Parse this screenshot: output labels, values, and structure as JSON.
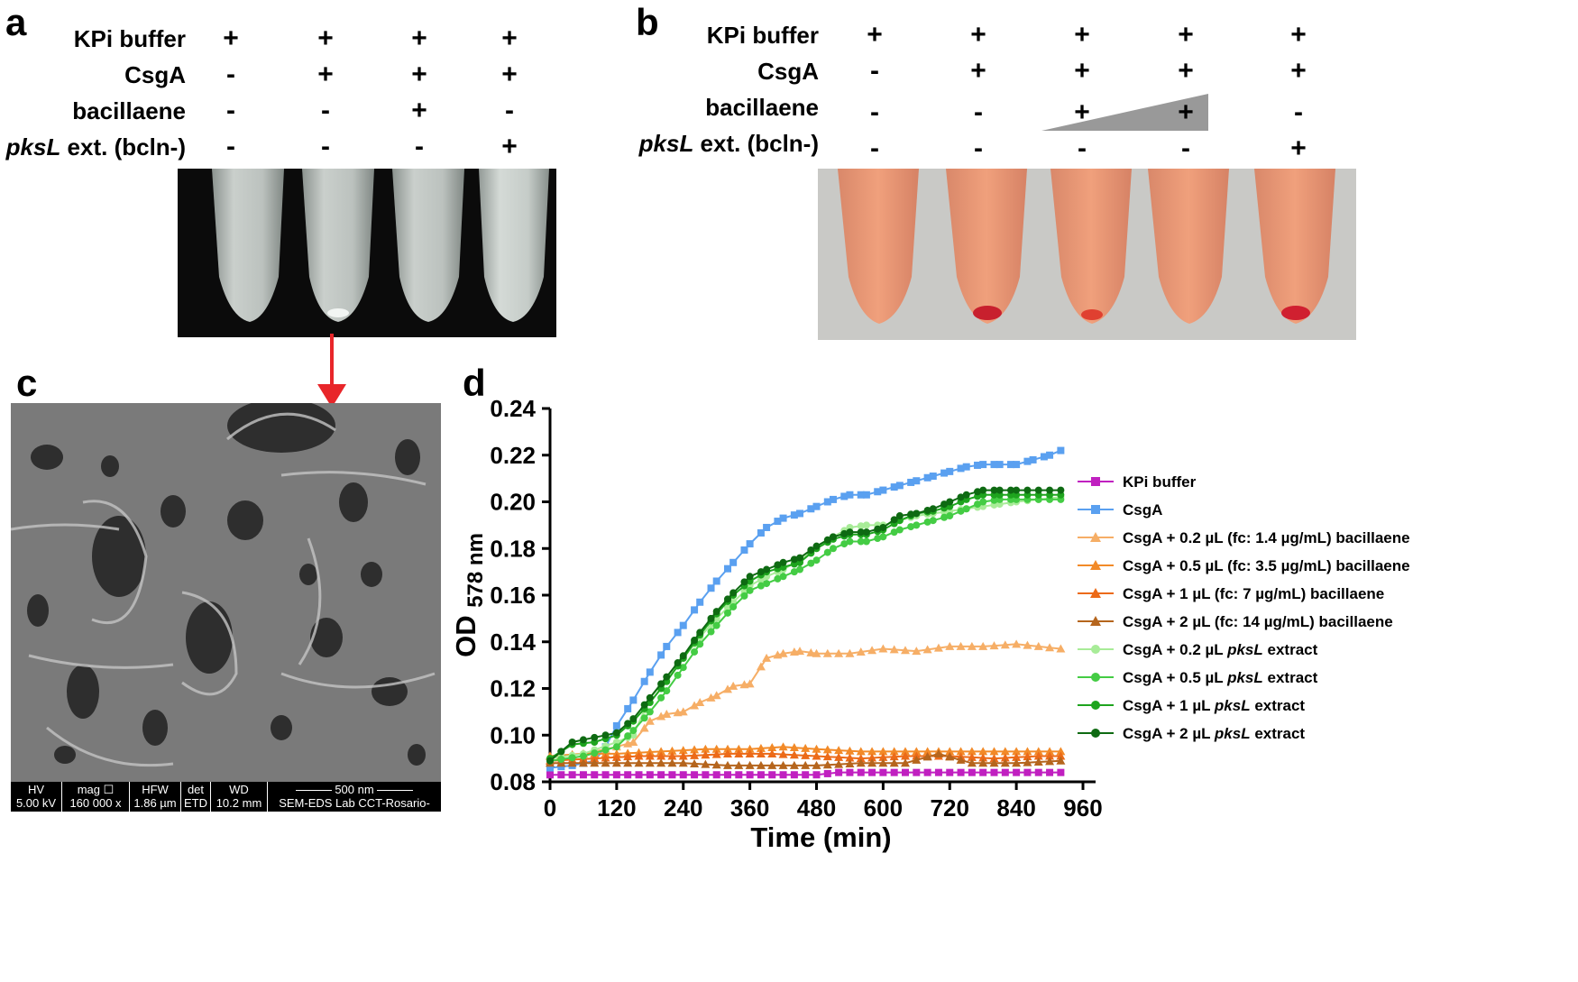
{
  "panel_a": {
    "letter": "a",
    "rows": [
      {
        "label": "KPi buffer",
        "values": [
          "+",
          "+",
          "+",
          "+"
        ]
      },
      {
        "label": "CsgA",
        "values": [
          "-",
          "+",
          "+",
          "+"
        ]
      },
      {
        "label": "bacillaene",
        "values": [
          "-",
          "-",
          "+",
          "-"
        ]
      },
      {
        "label_italic": "pksL",
        "label_rest": " ext. (bcln-)",
        "values": [
          "-",
          "-",
          "-",
          "+"
        ]
      }
    ]
  },
  "panel_b": {
    "letter": "b",
    "rows": [
      {
        "label": "KPi buffer",
        "values": [
          "+",
          "+",
          "+",
          "+",
          "+"
        ]
      },
      {
        "label": "CsgA",
        "values": [
          "-",
          "+",
          "+",
          "+",
          "+"
        ]
      },
      {
        "label": "bacillaene",
        "values": [
          "-",
          "-",
          "+",
          "+",
          "-"
        ]
      },
      {
        "label_italic": "pksL",
        "label_rest": " ext. (bcln-)",
        "values": [
          "-",
          "-",
          "-",
          "-",
          "+"
        ]
      }
    ]
  },
  "panel_c": {
    "letter": "c",
    "sem_bar": {
      "headers": [
        "HV",
        "mag ☐",
        "HFW",
        "det",
        "WD",
        "500 nm"
      ],
      "values": [
        "5.00 kV",
        "160 000 x",
        "1.86 µm",
        "ETD",
        "10.2 mm",
        "SEM-EDS Lab CCT-Rosario-"
      ]
    }
  },
  "panel_d": {
    "letter": "d"
  },
  "colors": {
    "arrow": "#e8262a",
    "kpi": "#c020c0",
    "csga": "#5aa0f0"
  },
  "chart_data": {
    "type": "line",
    "xlabel": "Time (min)",
    "ylabel": "OD",
    "ylabel_sub": "578 nm",
    "xlim": [
      0,
      960
    ],
    "ylim": [
      0.08,
      0.24
    ],
    "xticks": [
      0,
      120,
      240,
      360,
      480,
      600,
      720,
      840,
      960
    ],
    "yticks": [
      0.08,
      0.1,
      0.12,
      0.14,
      0.16,
      0.18,
      0.2,
      0.22,
      0.24
    ],
    "series": [
      {
        "name": "KPi buffer",
        "color": "#c020c0",
        "marker": "square",
        "points": [
          [
            0,
            0.083
          ],
          [
            120,
            0.083
          ],
          [
            240,
            0.083
          ],
          [
            360,
            0.083
          ],
          [
            480,
            0.083
          ],
          [
            520,
            0.084
          ],
          [
            600,
            0.084
          ],
          [
            720,
            0.084
          ],
          [
            840,
            0.084
          ],
          [
            920,
            0.084
          ]
        ]
      },
      {
        "name": "CsgA",
        "color": "#5aa0f0",
        "marker": "square",
        "points": [
          [
            0,
            0.086
          ],
          [
            40,
            0.087
          ],
          [
            80,
            0.089
          ],
          [
            100,
            0.095
          ],
          [
            120,
            0.104
          ],
          [
            150,
            0.115
          ],
          [
            180,
            0.127
          ],
          [
            210,
            0.138
          ],
          [
            240,
            0.147
          ],
          [
            270,
            0.157
          ],
          [
            300,
            0.166
          ],
          [
            330,
            0.174
          ],
          [
            360,
            0.182
          ],
          [
            390,
            0.189
          ],
          [
            420,
            0.193
          ],
          [
            450,
            0.195
          ],
          [
            480,
            0.198
          ],
          [
            510,
            0.201
          ],
          [
            540,
            0.203
          ],
          [
            570,
            0.203
          ],
          [
            600,
            0.205
          ],
          [
            630,
            0.207
          ],
          [
            660,
            0.209
          ],
          [
            690,
            0.211
          ],
          [
            720,
            0.213
          ],
          [
            750,
            0.215
          ],
          [
            780,
            0.216
          ],
          [
            810,
            0.216
          ],
          [
            840,
            0.216
          ],
          [
            870,
            0.218
          ],
          [
            900,
            0.22
          ],
          [
            920,
            0.222
          ]
        ]
      },
      {
        "name_pre": "CsgA + 0.2 µL (fc: 1.4 µg/mL) bacillaene",
        "name": "CsgA + 0.2 µL (fc: 1.4 µg/mL) bacillaene",
        "color": "#f6ae66",
        "marker": "triangle",
        "points": [
          [
            0,
            0.091
          ],
          [
            60,
            0.092
          ],
          [
            120,
            0.095
          ],
          [
            150,
            0.097
          ],
          [
            180,
            0.106
          ],
          [
            210,
            0.109
          ],
          [
            240,
            0.11
          ],
          [
            270,
            0.114
          ],
          [
            300,
            0.117
          ],
          [
            330,
            0.121
          ],
          [
            360,
            0.122
          ],
          [
            390,
            0.133
          ],
          [
            420,
            0.135
          ],
          [
            450,
            0.136
          ],
          [
            480,
            0.135
          ],
          [
            540,
            0.135
          ],
          [
            600,
            0.137
          ],
          [
            660,
            0.136
          ],
          [
            720,
            0.138
          ],
          [
            780,
            0.138
          ],
          [
            840,
            0.139
          ],
          [
            880,
            0.138
          ],
          [
            920,
            0.137
          ]
        ]
      },
      {
        "name": "CsgA + 0.5 µL (fc: 3.5 µg/mL) bacillaene",
        "color": "#f28a28",
        "marker": "triangle",
        "points": [
          [
            0,
            0.091
          ],
          [
            60,
            0.092
          ],
          [
            120,
            0.092
          ],
          [
            200,
            0.093
          ],
          [
            280,
            0.094
          ],
          [
            360,
            0.094
          ],
          [
            420,
            0.095
          ],
          [
            480,
            0.094
          ],
          [
            560,
            0.093
          ],
          [
            640,
            0.093
          ],
          [
            720,
            0.093
          ],
          [
            800,
            0.093
          ],
          [
            880,
            0.093
          ],
          [
            920,
            0.093
          ]
        ]
      },
      {
        "name": "CsgA + 1 µL  (fc: 7 µg/mL) bacillaene",
        "color": "#ec6a18",
        "marker": "triangle",
        "points": [
          [
            0,
            0.089
          ],
          [
            80,
            0.09
          ],
          [
            160,
            0.091
          ],
          [
            240,
            0.091
          ],
          [
            320,
            0.092
          ],
          [
            400,
            0.092
          ],
          [
            480,
            0.091
          ],
          [
            560,
            0.09
          ],
          [
            640,
            0.091
          ],
          [
            720,
            0.091
          ],
          [
            800,
            0.09
          ],
          [
            880,
            0.091
          ],
          [
            920,
            0.091
          ]
        ]
      },
      {
        "name": "CsgA + 2 µL (fc: 14 µg/mL) bacillaene",
        "color": "#b5651d",
        "marker": "triangle",
        "points": [
          [
            0,
            0.088
          ],
          [
            80,
            0.088
          ],
          [
            160,
            0.088
          ],
          [
            240,
            0.088
          ],
          [
            320,
            0.087
          ],
          [
            400,
            0.087
          ],
          [
            480,
            0.087
          ],
          [
            560,
            0.088
          ],
          [
            640,
            0.088
          ],
          [
            700,
            0.092
          ],
          [
            760,
            0.088
          ],
          [
            840,
            0.088
          ],
          [
            920,
            0.089
          ]
        ]
      },
      {
        "name_it": "pksL",
        "name_pre": "CsgA + 0.2 µL ",
        "name_post": " extract",
        "name": "CsgA + 0.2 µL pksL extract",
        "color": "#a8ec98",
        "marker": "circle",
        "points": [
          [
            0,
            0.09
          ],
          [
            60,
            0.092
          ],
          [
            120,
            0.097
          ],
          [
            150,
            0.1
          ],
          [
            180,
            0.116
          ],
          [
            210,
            0.124
          ],
          [
            240,
            0.133
          ],
          [
            270,
            0.142
          ],
          [
            300,
            0.15
          ],
          [
            330,
            0.157
          ],
          [
            360,
            0.164
          ],
          [
            390,
            0.168
          ],
          [
            420,
            0.171
          ],
          [
            450,
            0.175
          ],
          [
            480,
            0.18
          ],
          [
            510,
            0.185
          ],
          [
            540,
            0.189
          ],
          [
            570,
            0.19
          ],
          [
            600,
            0.19
          ],
          [
            630,
            0.192
          ],
          [
            660,
            0.194
          ],
          [
            690,
            0.195
          ],
          [
            720,
            0.196
          ],
          [
            750,
            0.197
          ],
          [
            780,
            0.198
          ],
          [
            810,
            0.199
          ],
          [
            840,
            0.2
          ],
          [
            880,
            0.201
          ],
          [
            920,
            0.202
          ]
        ]
      },
      {
        "name_it": "pksL",
        "name_pre": "CsgA + 0.5 µL ",
        "name_post": " extract",
        "name": "CsgA + 0.5 µL pksL extract",
        "color": "#44cc44",
        "marker": "circle",
        "points": [
          [
            0,
            0.089
          ],
          [
            60,
            0.091
          ],
          [
            120,
            0.095
          ],
          [
            150,
            0.102
          ],
          [
            180,
            0.11
          ],
          [
            210,
            0.119
          ],
          [
            240,
            0.129
          ],
          [
            270,
            0.139
          ],
          [
            300,
            0.147
          ],
          [
            330,
            0.155
          ],
          [
            360,
            0.162
          ],
          [
            390,
            0.165
          ],
          [
            420,
            0.168
          ],
          [
            450,
            0.171
          ],
          [
            480,
            0.175
          ],
          [
            510,
            0.18
          ],
          [
            540,
            0.183
          ],
          [
            570,
            0.183
          ],
          [
            600,
            0.185
          ],
          [
            630,
            0.188
          ],
          [
            660,
            0.19
          ],
          [
            690,
            0.192
          ],
          [
            720,
            0.194
          ],
          [
            750,
            0.197
          ],
          [
            780,
            0.2
          ],
          [
            810,
            0.201
          ],
          [
            840,
            0.201
          ],
          [
            880,
            0.201
          ],
          [
            920,
            0.201
          ]
        ]
      },
      {
        "name_it": "pksL",
        "name_pre": "CsgA + 1 µL ",
        "name_post": " extract",
        "name": "CsgA + 1 µL pksL extract",
        "color": "#1ea41e",
        "marker": "circle",
        "points": [
          [
            0,
            0.09
          ],
          [
            40,
            0.096
          ],
          [
            80,
            0.097
          ],
          [
            120,
            0.1
          ],
          [
            150,
            0.106
          ],
          [
            180,
            0.114
          ],
          [
            210,
            0.123
          ],
          [
            240,
            0.133
          ],
          [
            270,
            0.143
          ],
          [
            300,
            0.152
          ],
          [
            330,
            0.16
          ],
          [
            360,
            0.166
          ],
          [
            390,
            0.17
          ],
          [
            420,
            0.172
          ],
          [
            450,
            0.174
          ],
          [
            480,
            0.18
          ],
          [
            510,
            0.184
          ],
          [
            540,
            0.186
          ],
          [
            570,
            0.186
          ],
          [
            600,
            0.188
          ],
          [
            630,
            0.192
          ],
          [
            660,
            0.195
          ],
          [
            690,
            0.196
          ],
          [
            720,
            0.198
          ],
          [
            750,
            0.201
          ],
          [
            780,
            0.203
          ],
          [
            810,
            0.203
          ],
          [
            840,
            0.203
          ],
          [
            880,
            0.203
          ],
          [
            920,
            0.203
          ]
        ]
      },
      {
        "name_it": "pksL",
        "name_pre": "CsgA + 2 µL ",
        "name_post": " extract",
        "name": "CsgA + 2 µL pksL extract",
        "color": "#0e6a12",
        "marker": "circle",
        "points": [
          [
            0,
            0.089
          ],
          [
            40,
            0.097
          ],
          [
            80,
            0.099
          ],
          [
            120,
            0.101
          ],
          [
            150,
            0.107
          ],
          [
            180,
            0.116
          ],
          [
            210,
            0.125
          ],
          [
            240,
            0.134
          ],
          [
            270,
            0.144
          ],
          [
            300,
            0.153
          ],
          [
            330,
            0.161
          ],
          [
            360,
            0.168
          ],
          [
            390,
            0.171
          ],
          [
            420,
            0.174
          ],
          [
            450,
            0.176
          ],
          [
            480,
            0.181
          ],
          [
            510,
            0.185
          ],
          [
            540,
            0.187
          ],
          [
            570,
            0.187
          ],
          [
            600,
            0.189
          ],
          [
            630,
            0.194
          ],
          [
            660,
            0.195
          ],
          [
            690,
            0.197
          ],
          [
            720,
            0.2
          ],
          [
            750,
            0.203
          ],
          [
            780,
            0.205
          ],
          [
            810,
            0.205
          ],
          [
            840,
            0.205
          ],
          [
            880,
            0.205
          ],
          [
            920,
            0.205
          ]
        ]
      }
    ]
  }
}
